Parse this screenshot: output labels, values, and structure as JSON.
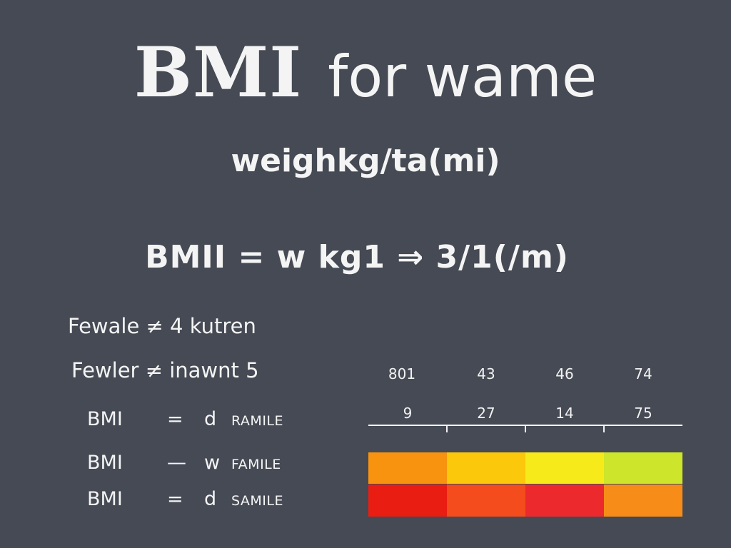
{
  "title": {
    "strong": "BMI",
    "rest": "for wame"
  },
  "subtitle": "weighkg/ta(mi)",
  "formula": "BMII = w  kg1  ⇒  3/1(/m)",
  "text_lines": [
    "Fewale ≠ 4 kutren",
    "Fewler ≠ inawnt 5"
  ],
  "bmi_rows": [
    {
      "label": "BMI",
      "op": "=",
      "var": "d",
      "caption": "RAMILE"
    },
    {
      "label": "BMI",
      "op": "—",
      "var": "w",
      "caption": "FAMILE"
    },
    {
      "label": "BMI",
      "op": "=",
      "var": "d",
      "caption": "SAMILE"
    }
  ],
  "chart_data": {
    "type": "heatmap",
    "columns": 4,
    "header_rows": [
      [
        "801",
        "43",
        "46",
        "74"
      ],
      [
        "9",
        "27",
        "14",
        "75"
      ]
    ],
    "color_rows": [
      [
        "#f7930f",
        "#fbc80c",
        "#f7ea1a",
        "#cde52a"
      ],
      [
        "#ea1d12",
        "#f44c1c",
        "#ec2a2e",
        "#f78d18"
      ]
    ]
  }
}
